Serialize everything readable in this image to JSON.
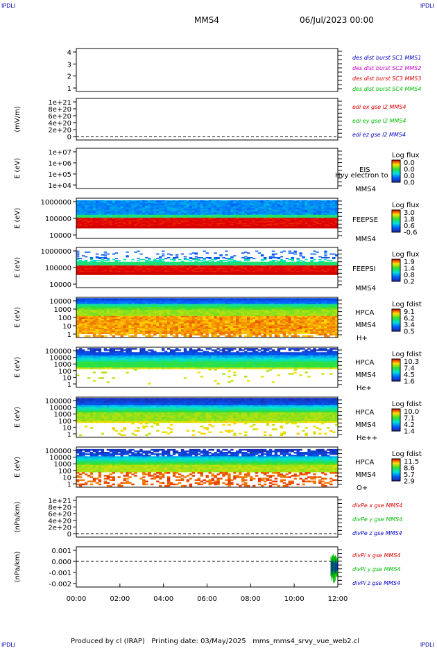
{
  "header": {
    "corner_left": "IPDLI",
    "corner_right": "IPDLI",
    "spacecraft": "MMS4",
    "date": "06/Jul/2023 00:00"
  },
  "footer": {
    "text": "Produced by cl (IRAP)   Printing date: 03/May/2025   mms_mms4_srvy_vue_web2.cl",
    "corner_left": "IPDLI",
    "corner_right": "IPDLI"
  },
  "colors": {
    "red": "#dd0000",
    "magenta": "#cc00cc",
    "green": "#00bb00",
    "blue": "#0000cc"
  },
  "chart_data": [
    {
      "type": "line",
      "id": "des-dist-burst",
      "yticks": [
        "4",
        "3",
        "2",
        "1"
      ],
      "legend": [
        {
          "name": "des dist burst SC1 MMS1",
          "color": "#0000cc"
        },
        {
          "name": "des dist burst SC2 MMS2",
          "color": "#cc00cc"
        },
        {
          "name": "des dist burst SC3 MMS3",
          "color": "#dd0000"
        },
        {
          "name": "des dist burst SC4 MMS4",
          "color": "#00bb00"
        }
      ]
    },
    {
      "type": "line",
      "id": "edi-e-field",
      "ylabel": "(mV/m)",
      "yticks": [
        "1e+21",
        "8e+20",
        "6e+20",
        "4e+20",
        "2e+20",
        "0"
      ],
      "legend": [
        {
          "name": "edi ex gse l2 MMS4",
          "color": "#dd0000"
        },
        {
          "name": "edi ey gse l2 MMS4",
          "color": "#00bb00"
        },
        {
          "name": "edi ez gse l2 MMS4",
          "color": "#0000cc"
        }
      ]
    },
    {
      "type": "heatmap",
      "id": "eis",
      "ylabel": "E (eV)",
      "yticks": [
        "1e+07",
        "1e+06",
        "1e+05",
        "1e+04"
      ],
      "labels": [
        "EIS",
        "Hvy electron to",
        "MMS4"
      ],
      "colorbar": {
        "title": "Log flux",
        "ticks": [
          "0.0",
          "0.0",
          "0.0",
          "0.0"
        ]
      }
    },
    {
      "type": "heatmap",
      "id": "feeps-e",
      "ylabel": "E (eV)",
      "yticks": [
        "1000000",
        "100000",
        "10000"
      ],
      "labels": [
        "FEEPSE",
        "MMS4"
      ],
      "colorbar": {
        "title": "Log flux",
        "ticks": [
          "3.0",
          "1.8",
          "0.6",
          "-0.6"
        ]
      }
    },
    {
      "type": "heatmap",
      "id": "feeps-i",
      "ylabel": "E (eV)",
      "yticks": [
        "1000000",
        "100000",
        "10000"
      ],
      "labels": [
        "FEEPSI",
        "MMS4"
      ],
      "colorbar": {
        "title": "Log flux",
        "ticks": [
          "1.9",
          "1.4",
          "0.8",
          "0.2"
        ]
      }
    },
    {
      "type": "heatmap",
      "id": "hpca-h",
      "ylabel": "E (eV)",
      "yticks": [
        "10000",
        "1000",
        "100",
        "10",
        "1"
      ],
      "labels": [
        "HPCA",
        "MMS4",
        "H+"
      ],
      "colorbar": {
        "title": "Log fdist",
        "ticks": [
          "9.1",
          "6.2",
          "3.4",
          "0.5"
        ]
      }
    },
    {
      "type": "heatmap",
      "id": "hpca-he",
      "ylabel": "E (eV)",
      "yticks": [
        "100000",
        "10000",
        "1000",
        "100",
        "10",
        "1"
      ],
      "labels": [
        "HPCA",
        "MMS4",
        "He+"
      ],
      "colorbar": {
        "title": "Log fdist",
        "ticks": [
          "10.3",
          "7.4",
          "4.5",
          "1.6"
        ]
      }
    },
    {
      "type": "heatmap",
      "id": "hpca-hepp",
      "ylabel": "E (eV)",
      "yticks": [
        "100000",
        "10000",
        "1000",
        "100",
        "10",
        "1"
      ],
      "labels": [
        "HPCA",
        "MMS4",
        "He++"
      ],
      "colorbar": {
        "title": "Log fdist",
        "ticks": [
          "10.0",
          "7.1",
          "4.2",
          "1.4"
        ]
      }
    },
    {
      "type": "heatmap",
      "id": "hpca-o",
      "ylabel": "E (eV)",
      "yticks": [
        "100000",
        "10000",
        "1000",
        "100",
        "10",
        "1"
      ],
      "labels": [
        "HPCA",
        "MMS4",
        "O+"
      ],
      "colorbar": {
        "title": "Log fdist",
        "ticks": [
          "11.5",
          "8.6",
          "5.7",
          "2.9"
        ]
      }
    },
    {
      "type": "line",
      "id": "divpe",
      "ylabel": "(nPa/km)",
      "yticks": [
        "1e+21",
        "8e+20",
        "6e+20",
        "4e+20",
        "2e+20",
        "0"
      ],
      "legend": [
        {
          "name": "divPe x gse MMS4",
          "color": "#dd0000"
        },
        {
          "name": "divPe y gse MMS4",
          "color": "#00bb00"
        },
        {
          "name": "divPe z gse MMS4",
          "color": "#0000cc"
        }
      ]
    },
    {
      "type": "line",
      "id": "divpi",
      "ylabel": "(nPa/km)",
      "yticks": [
        "0.001",
        "0.000",
        "-0.001",
        "-0.002"
      ],
      "legend": [
        {
          "name": "divPi x gse MMS4",
          "color": "#dd0000"
        },
        {
          "name": "divPi y gse MMS4",
          "color": "#00bb00"
        },
        {
          "name": "divPi z gse MMS4",
          "color": "#0000cc"
        }
      ]
    }
  ],
  "xaxis": {
    "ticks": [
      "00:00",
      "02:00",
      "04:00",
      "06:00",
      "08:00",
      "10:00",
      "12:00"
    ]
  }
}
